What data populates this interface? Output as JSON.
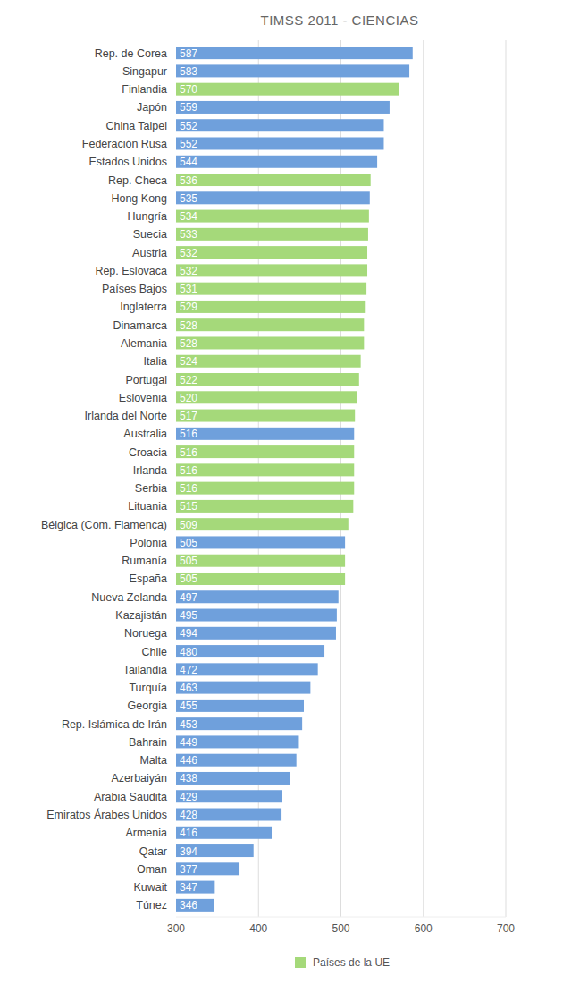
{
  "chart_data": {
    "type": "bar",
    "title": "TIMSS 2011 - CIENCIAS",
    "orientation": "horizontal",
    "categories": [
      "Rep. de Corea",
      "Singapur",
      "Finlandia",
      "Japón",
      "China Taipei",
      "Federación Rusa",
      "Estados Unidos",
      "Rep. Checa",
      "Hong Kong",
      "Hungría",
      "Suecia",
      "Austria",
      "Rep. Eslovaca",
      "Países Bajos",
      "Inglaterra",
      "Dinamarca",
      "Alemania",
      "Italia",
      "Portugal",
      "Eslovenia",
      "Irlanda del Norte",
      "Australia",
      "Croacia",
      "Irlanda",
      "Serbia",
      "Lituania",
      "Bélgica (Com. Flamenca)",
      "Polonia",
      "Rumanía",
      "España",
      "Nueva Zelanda",
      "Kazajistán",
      "Noruega",
      "Chile",
      "Tailandia",
      "Turquía",
      "Georgia",
      "Rep. Islámica de Irán",
      "Bahrain",
      "Malta",
      "Azerbaiyán",
      "Arabia Saudita",
      "Emiratos Árabes Unidos",
      "Armenia",
      "Qatar",
      "Oman",
      "Kuwait",
      "Túnez"
    ],
    "series": [
      {
        "color": "#6fa0dc",
        "values": [
          587,
          583,
          null,
          559,
          552,
          552,
          544,
          null,
          535,
          null,
          null,
          null,
          null,
          null,
          null,
          null,
          null,
          null,
          null,
          null,
          null,
          516,
          null,
          null,
          null,
          null,
          null,
          505,
          null,
          null,
          497,
          495,
          494,
          480,
          472,
          463,
          455,
          453,
          449,
          446,
          438,
          429,
          428,
          416,
          394,
          377,
          347,
          346
        ]
      },
      {
        "name": "Países de la UE",
        "color": "#a5d97a",
        "values": [
          null,
          null,
          570,
          null,
          null,
          null,
          null,
          536,
          null,
          534,
          533,
          532,
          532,
          531,
          529,
          528,
          528,
          524,
          522,
          520,
          517,
          null,
          516,
          516,
          516,
          515,
          509,
          null,
          505,
          505,
          null,
          null,
          null,
          null,
          null,
          null,
          null,
          null,
          null,
          null,
          null,
          null,
          null,
          null,
          null,
          null,
          null,
          null
        ]
      }
    ],
    "xlim": [
      300,
      700
    ],
    "xticks": [
      300,
      400,
      500,
      600,
      700
    ],
    "grid": true,
    "data_labels": true,
    "legend": "bottom"
  }
}
